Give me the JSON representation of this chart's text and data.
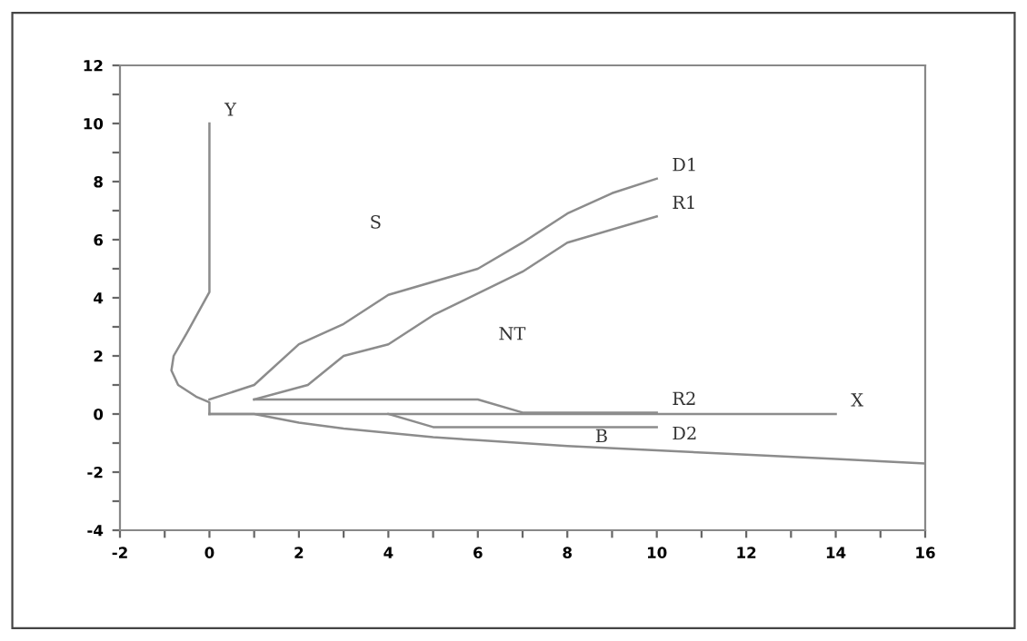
{
  "chart_data": {
    "type": "line",
    "xlim": [
      -2,
      16
    ],
    "ylim": [
      -4,
      12
    ],
    "xticks": [
      -2,
      {
        "value": -1,
        "label": null
      },
      0,
      {
        "value": 1,
        "label": null
      },
      2,
      {
        "value": 3,
        "label": null
      },
      4,
      {
        "value": 5,
        "label": null
      },
      6,
      {
        "value": 7,
        "label": null
      },
      8,
      {
        "value": 9,
        "label": null
      },
      10,
      {
        "value": 11,
        "label": null
      },
      12,
      {
        "value": 13,
        "label": null
      },
      14,
      {
        "value": 15,
        "label": null
      },
      16
    ],
    "yticks": [
      -4,
      {
        "value": -3,
        "label": null
      },
      -2,
      {
        "value": -1,
        "label": null
      },
      0,
      {
        "value": 1,
        "label": null
      },
      2,
      {
        "value": 3,
        "label": null
      },
      4,
      {
        "value": 5,
        "label": null
      },
      6,
      {
        "value": 7,
        "label": null
      },
      8,
      {
        "value": 9,
        "label": null
      },
      10,
      {
        "value": 11,
        "label": null
      },
      12
    ],
    "grid": false,
    "legend": false,
    "marker": "none",
    "line_style": "solid",
    "series": [
      {
        "name": "Y",
        "color": "#8c8c8c",
        "x": [
          0,
          0,
          -0.3,
          -0.7,
          -0.85,
          -0.8,
          -0.5,
          0,
          0
        ],
        "values": [
          0,
          0.4,
          0.6,
          1.0,
          1.5,
          2.0,
          2.8,
          4.2,
          10
        ]
      },
      {
        "name": "X",
        "color": "#8c8c8c",
        "x": [
          0,
          14
        ],
        "values": [
          0,
          0
        ]
      },
      {
        "name": "D1",
        "color": "#8c8c8c",
        "x": [
          0,
          1,
          2,
          3,
          4,
          6,
          7,
          8,
          9,
          10
        ],
        "values": [
          0.5,
          1.0,
          2.4,
          3.1,
          4.1,
          5.0,
          5.9,
          6.9,
          7.6,
          8.1
        ]
      },
      {
        "name": "R1",
        "color": "#8c8c8c",
        "x": [
          1,
          2.2,
          3,
          4,
          5,
          7,
          8,
          10
        ],
        "values": [
          0.5,
          1.0,
          2.0,
          2.4,
          3.4,
          4.9,
          5.9,
          6.8
        ]
      },
      {
        "name": "R2",
        "color": "#8c8c8c",
        "x": [
          1,
          6,
          7,
          10
        ],
        "values": [
          0.5,
          0.5,
          0.05,
          0.05
        ]
      },
      {
        "name": "D2",
        "color": "#8c8c8c",
        "x": [
          4,
          5,
          10
        ],
        "values": [
          0,
          -0.45,
          -0.45
        ]
      },
      {
        "color": "#8c8c8c",
        "x": [
          0,
          1,
          2,
          3,
          4,
          5,
          6,
          8,
          10,
          12,
          14,
          16
        ],
        "values": [
          0,
          0,
          -0.3,
          -0.5,
          -0.65,
          -0.8,
          -0.9,
          -1.1,
          -1.25,
          -1.4,
          -1.55,
          -1.7
        ]
      }
    ],
    "annotations": [
      "S",
      "NT",
      "B"
    ]
  }
}
